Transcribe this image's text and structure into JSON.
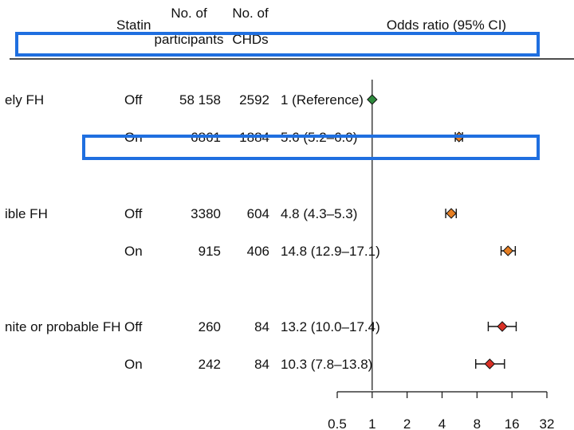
{
  "header": {
    "statin": "Statin",
    "participants_line1": "No. of",
    "participants_line2": "participants",
    "chds_line1": "No. of",
    "chds_line2": "CHDs",
    "or": "Odds ratio (95% CI)"
  },
  "colors": {
    "unlikely": "#2e8b3d",
    "possible": "#e67e22",
    "definite": "#d93025",
    "highlight": "#1f6fe0"
  },
  "chart_data": {
    "type": "forest",
    "xscale": "log2",
    "xlim": [
      0.5,
      32
    ],
    "reference_value": 1,
    "xticks": [
      "0.5",
      "1",
      "2",
      "4",
      "8",
      "16",
      "32"
    ],
    "xtick_values": [
      0.5,
      1,
      2,
      4,
      8,
      16,
      32
    ],
    "rows": [
      {
        "group": "Unlikely FH",
        "group_visible": "ely FH",
        "statin": "Off",
        "participants": "58 158",
        "chds": "2592",
        "or_text": "1 (Reference)",
        "or": 1,
        "lo": 1,
        "hi": 1,
        "color_key": "unlikely"
      },
      {
        "group": "Unlikely FH",
        "group_visible": "",
        "statin": "On",
        "participants": "6861",
        "chds": "1884",
        "or_text": "5.6 (5.2–6.0)",
        "or": 5.6,
        "lo": 5.2,
        "hi": 6.0,
        "color_key": "possible"
      },
      {
        "group": "Possible FH",
        "group_visible": "ible FH",
        "statin": "Off",
        "participants": "3380",
        "chds": "604",
        "or_text": "4.8 (4.3–5.3)",
        "or": 4.8,
        "lo": 4.3,
        "hi": 5.3,
        "color_key": "possible"
      },
      {
        "group": "Possible FH",
        "group_visible": "",
        "statin": "On",
        "participants": "915",
        "chds": "406",
        "or_text": "14.8 (12.9–17.1)",
        "or": 14.8,
        "lo": 12.9,
        "hi": 17.1,
        "color_key": "possible"
      },
      {
        "group": "Definite or probable FH",
        "group_visible": "nite or probable FH",
        "statin": "Off",
        "participants": "260",
        "chds": "84",
        "or_text": "13.2 (10.0–17.4)",
        "or": 13.2,
        "lo": 10.0,
        "hi": 17.4,
        "color_key": "definite"
      },
      {
        "group": "Definite or probable FH",
        "group_visible": "",
        "statin": "On",
        "participants": "242",
        "chds": "84",
        "or_text": "10.3 (7.8–13.8)",
        "or": 10.3,
        "lo": 7.8,
        "hi": 13.8,
        "color_key": "definite"
      }
    ]
  }
}
